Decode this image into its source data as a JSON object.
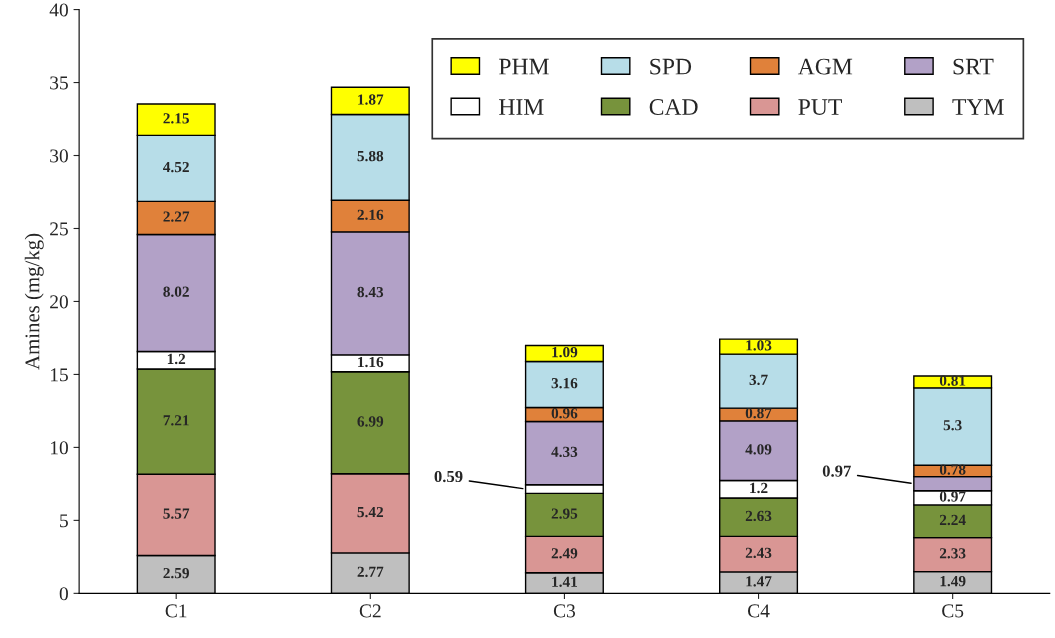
{
  "chart_data": {
    "type": "bar",
    "stacked": true,
    "ylabel": "Amines (mg/kg)",
    "categories": [
      "C1",
      "C2",
      "C3",
      "C4",
      "C5"
    ],
    "series": [
      {
        "name": "TYM",
        "color": "#bfbfbf",
        "values": [
          2.59,
          2.77,
          1.41,
          1.47,
          1.49
        ],
        "value_labels": [
          "2.59",
          "2.77",
          "1.41",
          "1.47",
          "1.49"
        ]
      },
      {
        "name": "PUT",
        "color": "#d99694",
        "values": [
          5.57,
          5.42,
          2.49,
          2.43,
          2.33
        ],
        "value_labels": [
          "5.57",
          "5.42",
          "2.49",
          "2.43",
          "2.33"
        ]
      },
      {
        "name": "CAD",
        "color": "#77933c",
        "values": [
          7.21,
          6.99,
          2.95,
          2.63,
          2.24
        ],
        "value_labels": [
          "7.21",
          "6.99",
          "2.95",
          "2.63",
          "2.24"
        ]
      },
      {
        "name": "HIM",
        "color": "#ffffff",
        "values": [
          1.2,
          1.16,
          0.59,
          1.2,
          0.97
        ],
        "value_labels": [
          "1.2",
          "1.16",
          "0.59",
          "1.2",
          "0.97"
        ]
      },
      {
        "name": "SRT",
        "color": "#b2a1c7",
        "values": [
          8.02,
          8.43,
          4.33,
          4.09,
          0.97
        ],
        "value_labels": [
          "8.02",
          "8.43",
          "4.33",
          "4.09",
          "0.97"
        ]
      },
      {
        "name": "AGM",
        "color": "#e0813a",
        "values": [
          2.27,
          2.16,
          0.96,
          0.87,
          0.78
        ],
        "value_labels": [
          "2.27",
          "2.16",
          "0.96",
          "0.87",
          "0.78"
        ]
      },
      {
        "name": "SPD",
        "color": "#b7dde8",
        "values": [
          4.52,
          5.88,
          3.16,
          3.7,
          5.3
        ],
        "value_labels": [
          "4.52",
          "5.88",
          "3.16",
          "3.7",
          "5.3"
        ]
      },
      {
        "name": "PHM",
        "color": "#ffff00",
        "values": [
          2.15,
          1.87,
          1.09,
          1.03,
          0.81
        ],
        "value_labels": [
          "2.15",
          "1.87",
          "1.09",
          "1.03",
          "0.81"
        ]
      }
    ],
    "ylim": [
      0,
      40
    ],
    "yticks": [
      0,
      5,
      10,
      15,
      20,
      25,
      30,
      35,
      40
    ],
    "grid": false,
    "legend": "top right"
  }
}
